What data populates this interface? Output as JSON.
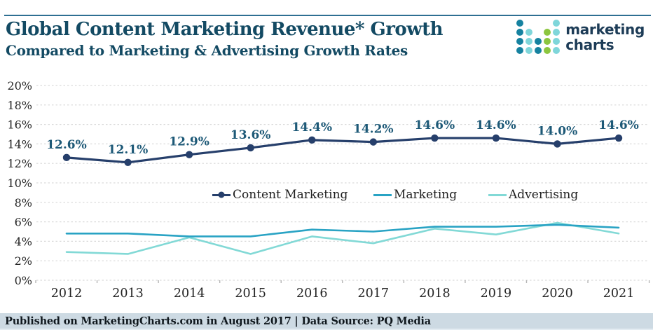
{
  "header": {
    "title": "Global Content Marketing Revenue* Growth",
    "subtitle": "Compared to Marketing & Advertising Growth Rates"
  },
  "logo": {
    "line1": "marketing",
    "line2": "charts",
    "colors": {
      "dark": "#1682a0",
      "aqua": "#7fd6da",
      "green": "#8cc63f",
      "text": "#1d3c57"
    },
    "dot_columns": [
      {
        "dots": 4,
        "color": "dark"
      },
      {
        "dots": 3,
        "color": "aqua"
      },
      {
        "dots": 2,
        "color": "dark"
      },
      {
        "dots": 3,
        "color": "green"
      },
      {
        "dots": 4,
        "color": "aqua"
      }
    ]
  },
  "chart_data": {
    "type": "line",
    "title": "Global Content Marketing Revenue* Growth Compared to Marketing & Advertising Growth Rates",
    "categories": [
      "2012",
      "2013",
      "2014",
      "2015",
      "2016",
      "2017",
      "2018",
      "2019",
      "2020",
      "2021"
    ],
    "series": [
      {
        "name": "Content Marketing",
        "color": "#263f6b",
        "marker": true,
        "values": [
          12.6,
          12.1,
          12.9,
          13.6,
          14.4,
          14.2,
          14.6,
          14.6,
          14.0,
          14.6
        ],
        "labels": [
          "12.6%",
          "12.1%",
          "12.9%",
          "13.6%",
          "14.4%",
          "14.2%",
          "14.6%",
          "14.6%",
          "14.0%",
          "14.6%"
        ]
      },
      {
        "name": "Marketing",
        "color": "#29a3c4",
        "marker": false,
        "values": [
          4.8,
          4.8,
          4.5,
          4.5,
          5.2,
          5.0,
          5.5,
          5.5,
          5.7,
          5.4
        ]
      },
      {
        "name": "Advertising",
        "color": "#82d9d6",
        "marker": false,
        "values": [
          2.9,
          2.7,
          4.4,
          2.7,
          4.5,
          3.8,
          5.3,
          4.7,
          5.9,
          4.8
        ]
      }
    ],
    "yticks": [
      "0%",
      "2%",
      "4%",
      "6%",
      "8%",
      "10%",
      "12%",
      "14%",
      "16%",
      "18%",
      "20%"
    ],
    "ylim": [
      0,
      20
    ],
    "xlabel": "",
    "ylabel": "",
    "grid": "horizontal dashed",
    "legend_position": "inside-middle",
    "label_color": "#1d5977",
    "axis_text_color": "#242424"
  },
  "footer": {
    "text": "Published on MarketingCharts.com in August 2017 | Data Source: PQ Media"
  }
}
